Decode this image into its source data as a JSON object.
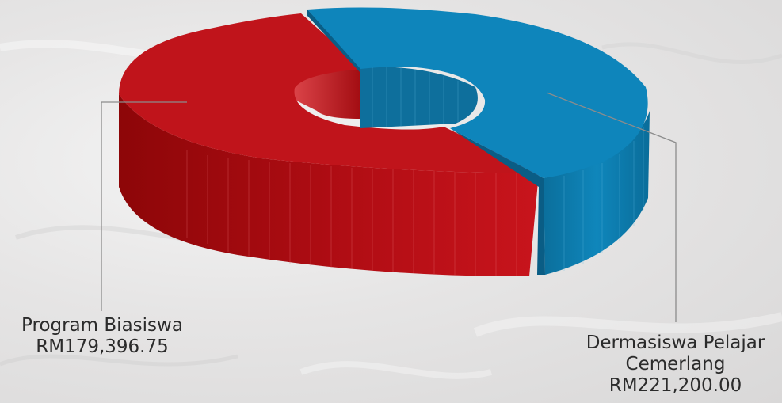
{
  "chart_data": {
    "type": "pie",
    "style": "3d-donut",
    "title": "",
    "slices": [
      {
        "label": "Program Biasiswa",
        "value": 179396.75,
        "value_label": "RM179,396.75",
        "color": "#c0131b"
      },
      {
        "label": "Dermasiswa Pelajar Cemerlang",
        "value": 221200.0,
        "value_label": "RM221,200.00",
        "color": "#0e83b7"
      }
    ],
    "legend": "none"
  }
}
